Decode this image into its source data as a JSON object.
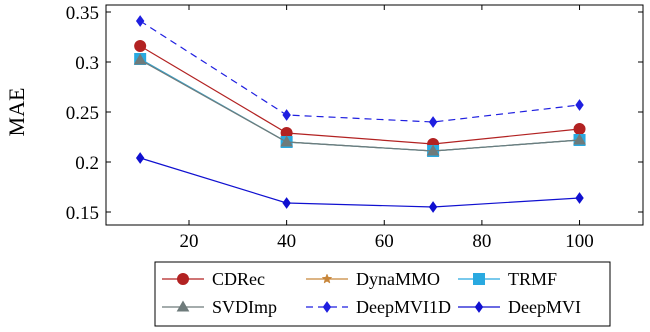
{
  "chart_data": {
    "type": "line",
    "title": "",
    "xlabel": "",
    "ylabel": "MAE",
    "xlim": [
      3,
      113
    ],
    "ylim": [
      0.137,
      0.357
    ],
    "xticks": [
      20,
      40,
      60,
      80,
      100
    ],
    "yticks": [
      0.15,
      0.2,
      0.25,
      0.3,
      0.35
    ],
    "xtick_labels": [
      "20",
      "40",
      "60",
      "80",
      "100"
    ],
    "ytick_labels": [
      "0.15",
      "0.2",
      "0.25",
      "0.3",
      "0.35"
    ],
    "x": [
      10,
      40,
      70,
      100
    ],
    "grid": false,
    "legend_position": "bottom",
    "series": [
      {
        "name": "CDRec",
        "values": [
          0.316,
          0.229,
          0.218,
          0.233
        ],
        "color": "#b22222",
        "marker": "circle",
        "dash": "solid"
      },
      {
        "name": "DynaMMO",
        "values": [
          0.303,
          0.22,
          0.211,
          0.222
        ],
        "color": "#c8863a",
        "marker": "star",
        "dash": "solid"
      },
      {
        "name": "TRMF",
        "values": [
          0.303,
          0.22,
          0.211,
          0.222
        ],
        "color": "#29a9e0",
        "marker": "square",
        "dash": "solid"
      },
      {
        "name": "SVDImp",
        "values": [
          0.302,
          0.22,
          0.211,
          0.222
        ],
        "color": "#6e7b7b",
        "marker": "triangle",
        "dash": "solid"
      },
      {
        "name": "DeepMVI1D",
        "values": [
          0.341,
          0.247,
          0.24,
          0.257
        ],
        "color": "#1f1fe0",
        "marker": "diamond",
        "dash": "dashed"
      },
      {
        "name": "DeepMVI",
        "values": [
          0.204,
          0.159,
          0.155,
          0.164
        ],
        "color": "#1010d0",
        "marker": "diamond",
        "dash": "solid"
      }
    ]
  }
}
